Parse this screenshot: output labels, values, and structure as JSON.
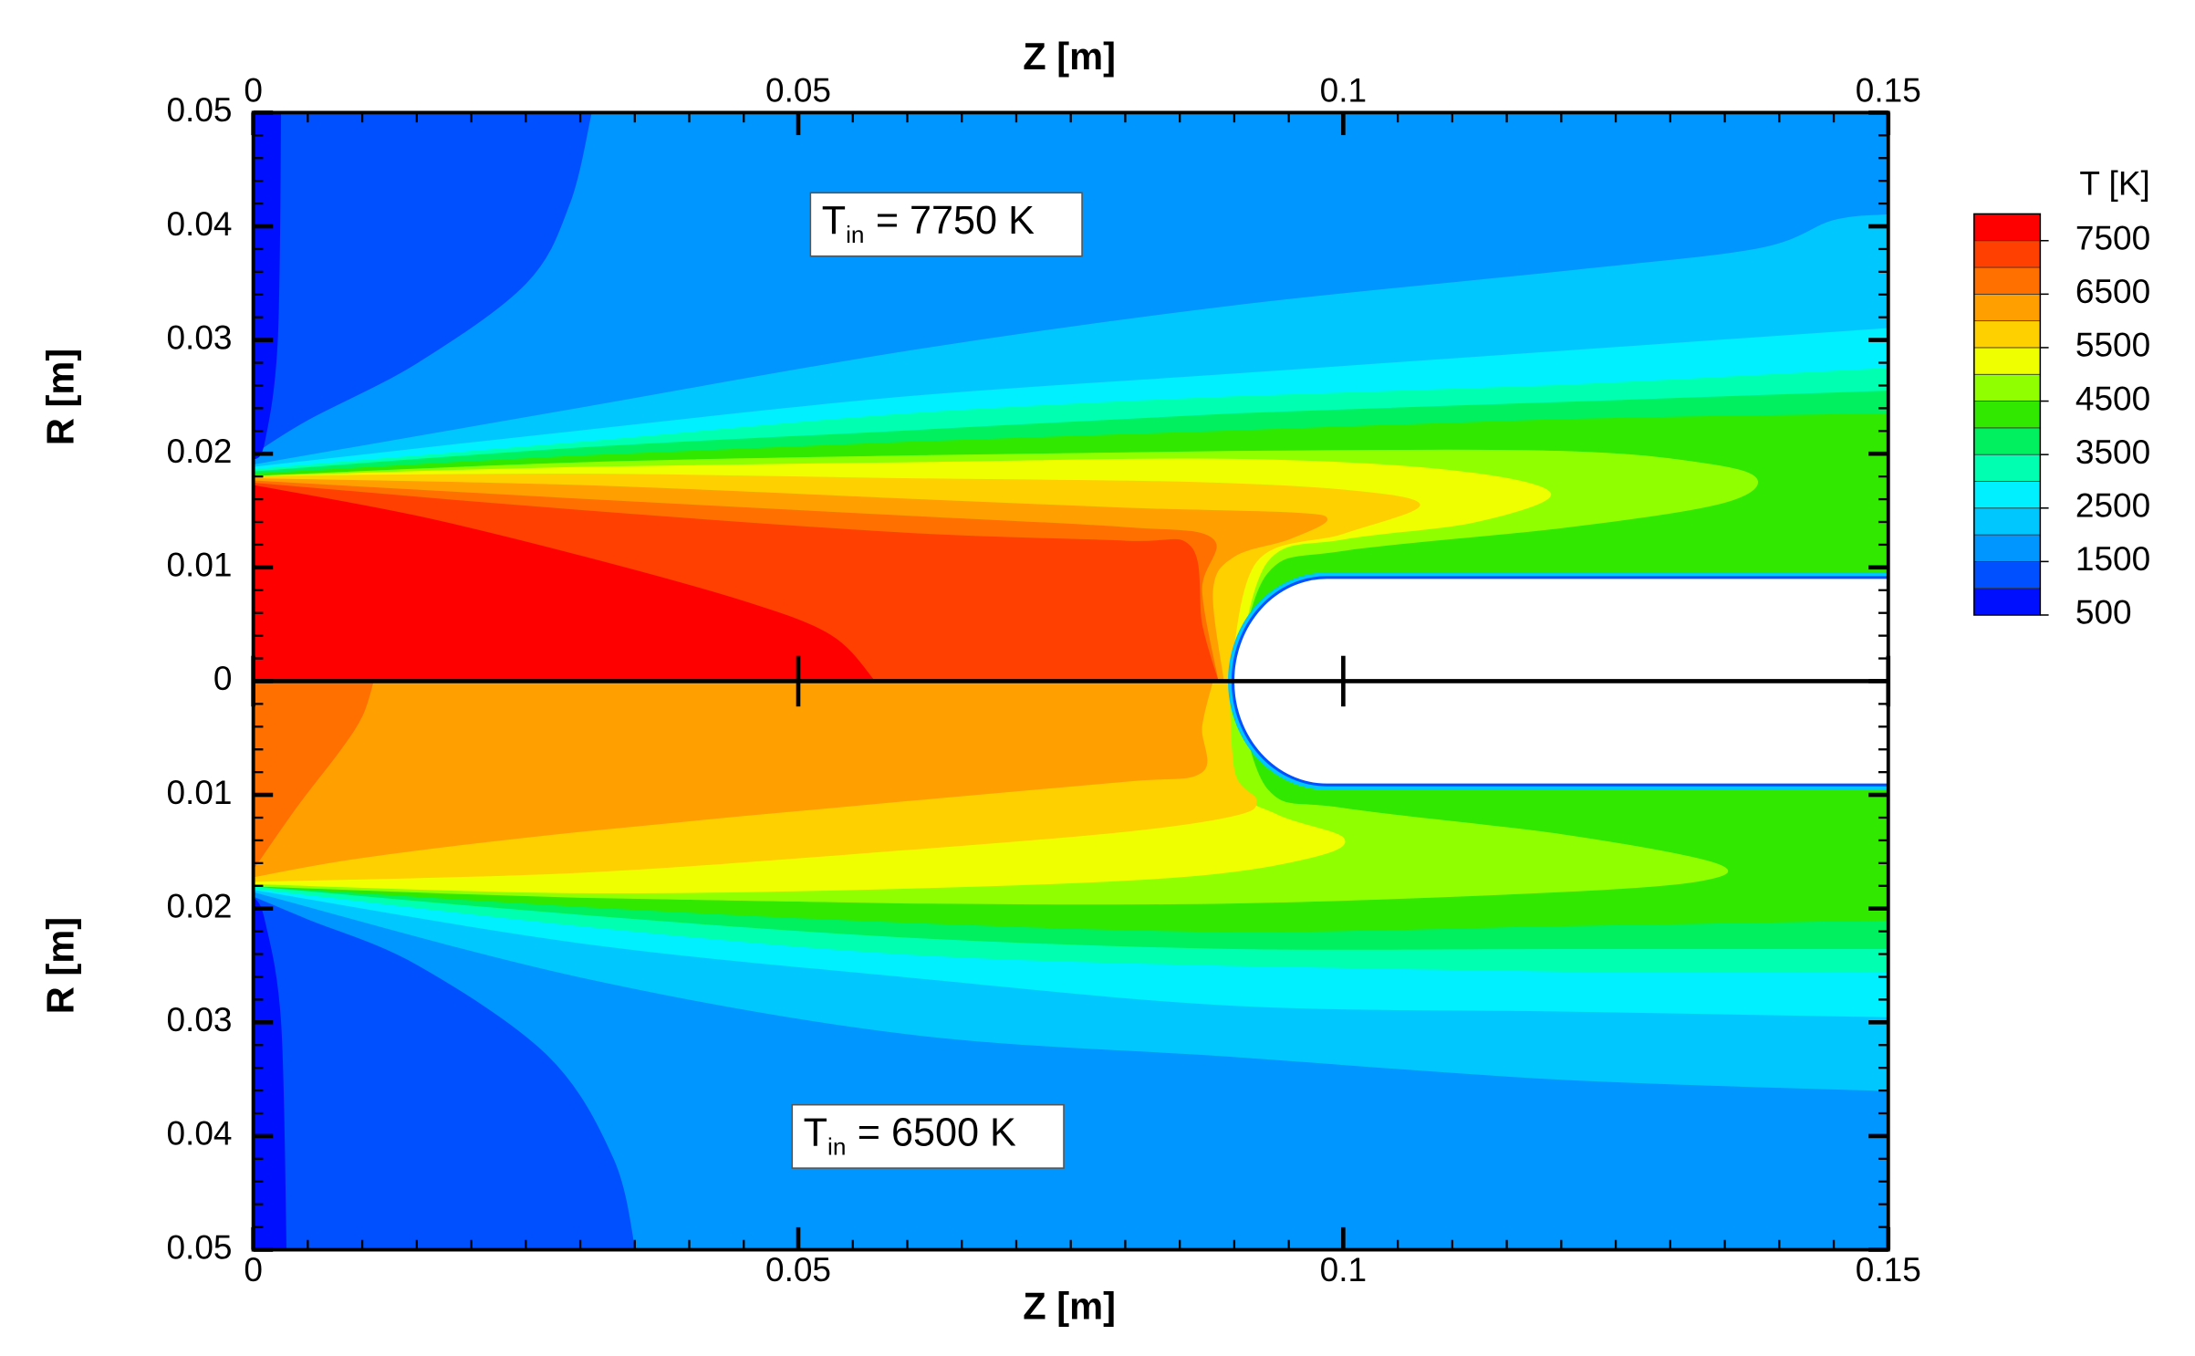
{
  "chart_data": [
    {
      "type": "contour",
      "x_label": "Z [m]",
      "y_label": "R [m]",
      "xlim": [
        0,
        0.15
      ],
      "xticks": [
        0,
        0.05,
        0.1,
        0.15
      ],
      "ylim": [
        0,
        0.05
      ],
      "yticks": [
        0,
        0.01,
        0.02,
        0.03,
        0.04,
        0.05
      ],
      "x_axis_position": "top",
      "invert_y": false,
      "annotation": [
        "T",
        "in",
        "= 7750 K"
      ],
      "colorbar": {
        "title": "T [K]",
        "levels": [
          500,
          1000,
          1500,
          2000,
          2500,
          3000,
          3500,
          4000,
          4500,
          5000,
          5500,
          6000,
          6500,
          7000,
          7500,
          8000
        ],
        "colors": [
          "#0010ff",
          "#0050ff",
          "#0096ff",
          "#00c8ff",
          "#00f0ff",
          "#00ffb0",
          "#00f060",
          "#30e800",
          "#90ff00",
          "#f0ff00",
          "#ffd000",
          "#ffa000",
          "#ff7000",
          "#ff4000",
          "#ff0000"
        ],
        "ticks": [
          500,
          1500,
          2500,
          3500,
          4500,
          5500,
          6500,
          7500
        ]
      }
    },
    {
      "type": "contour",
      "x_label": "Z [m]",
      "y_label": "R [m]",
      "xlim": [
        0,
        0.15
      ],
      "xticks": [
        0,
        0.05,
        0.1,
        0.15
      ],
      "ylim": [
        0,
        0.05
      ],
      "yticks": [
        0.01,
        0.02,
        0.03,
        0.04,
        0.05
      ],
      "x_axis_position": "bottom",
      "invert_y": true,
      "annotation": [
        "T",
        "in",
        "= 6500 K"
      ]
    }
  ]
}
